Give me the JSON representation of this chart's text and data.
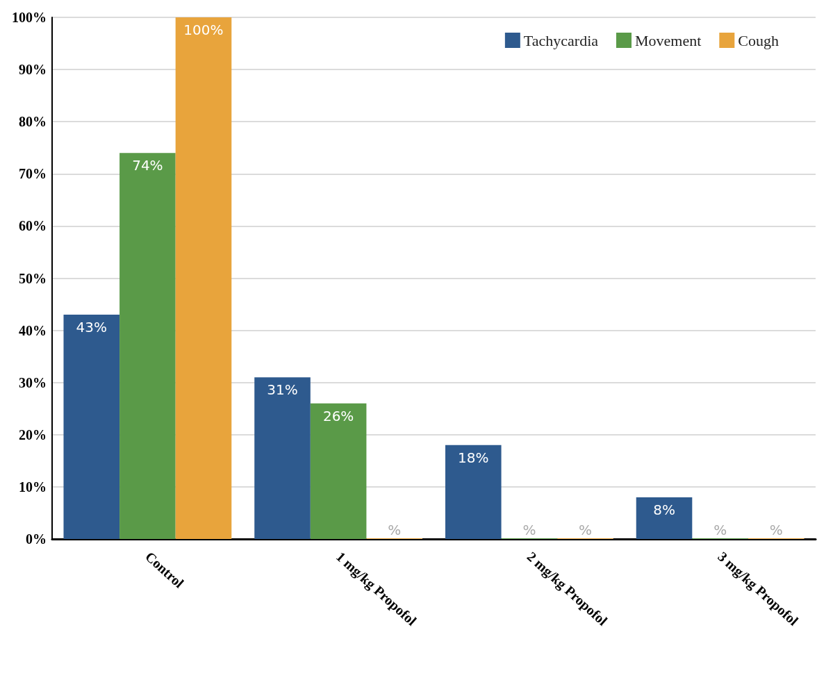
{
  "chart_data": {
    "type": "bar",
    "categories": [
      "Control",
      "1 mg/kg Propofol",
      "2 mg/kg Propofol",
      "3 mg/kg Propofol"
    ],
    "series": [
      {
        "name": "Tachycardia",
        "color": "#2e5a8e",
        "values": [
          43,
          31,
          18,
          8
        ],
        "value_labels": [
          "43%",
          "31%",
          "18%",
          "8%"
        ]
      },
      {
        "name": "Movement",
        "color": "#5a9a48",
        "values": [
          74,
          26,
          0,
          0
        ],
        "value_labels": [
          "74%",
          "26%",
          "%",
          "%"
        ]
      },
      {
        "name": "Cough",
        "color": "#e8a43c",
        "values": [
          100,
          0,
          0,
          0
        ],
        "value_labels": [
          "100%",
          "%",
          "%",
          "%"
        ]
      }
    ],
    "ylim": [
      0,
      100
    ],
    "yticks": [
      {
        "value": 0,
        "label": "0%"
      },
      {
        "value": 10,
        "label": "10%"
      },
      {
        "value": 20,
        "label": "20%"
      },
      {
        "value": 30,
        "label": "30%"
      },
      {
        "value": 40,
        "label": "40%"
      },
      {
        "value": 50,
        "label": "50%"
      },
      {
        "value": 60,
        "label": "60%"
      },
      {
        "value": 70,
        "label": "70%"
      },
      {
        "value": 80,
        "label": "80%"
      },
      {
        "value": 90,
        "label": "90%"
      },
      {
        "value": 100,
        "label": "100%"
      }
    ],
    "grid": "y",
    "legend": "top right"
  }
}
